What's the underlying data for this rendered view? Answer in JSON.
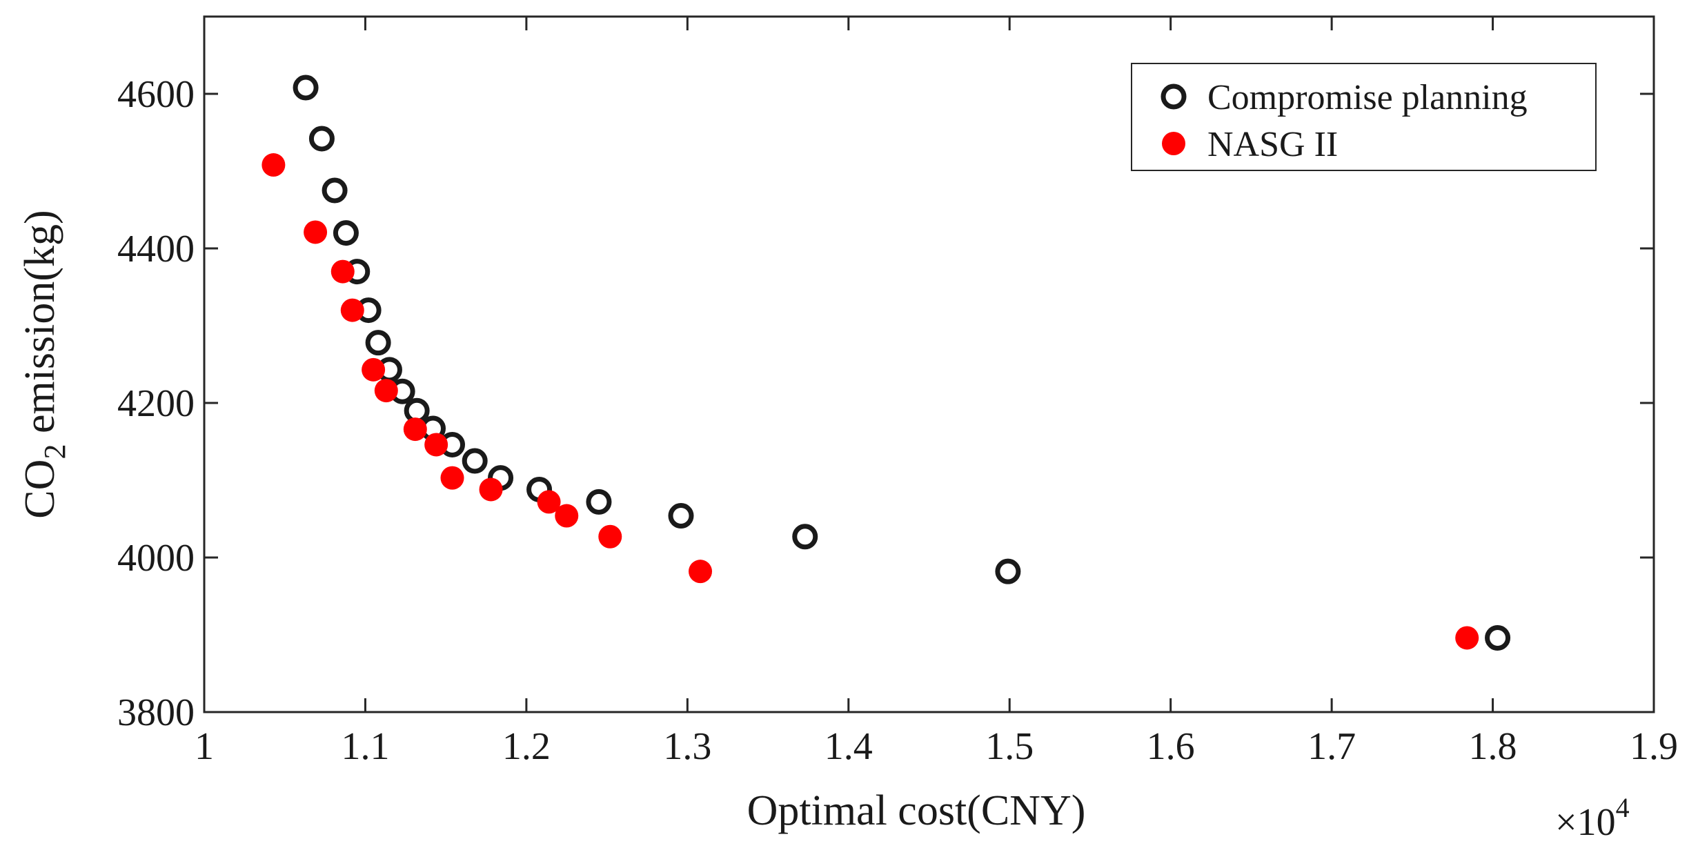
{
  "chart_data": {
    "type": "scatter",
    "title": "",
    "xlabel": "Optimal cost(CNY)",
    "ylabel": {
      "prefix": "CO",
      "subscript": "2",
      "suffix": " emission(kg)"
    },
    "x_multiplier": {
      "base": "×10",
      "exponent": "4"
    },
    "xlim": [
      1.0,
      1.9
    ],
    "ylim": [
      3800,
      4700
    ],
    "x_ticks": [
      1,
      1.1,
      1.2,
      1.3,
      1.4,
      1.5,
      1.6,
      1.7,
      1.8,
      1.9
    ],
    "x_tick_labels": [
      "1",
      "1.1",
      "1.2",
      "1.3",
      "1.4",
      "1.5",
      "1.6",
      "1.7",
      "1.8",
      "1.9"
    ],
    "y_ticks": [
      3800,
      4000,
      4200,
      4400,
      4600
    ],
    "y_tick_labels": [
      "3800",
      "4000",
      "4200",
      "4400",
      "4600"
    ],
    "grid": false,
    "legend_position": "top-right",
    "series": [
      {
        "name": "Compromise planning",
        "marker": "open-circle",
        "color": "#1a1a1a",
        "points": [
          [
            1.063,
            4608
          ],
          [
            1.073,
            4542
          ],
          [
            1.081,
            4475
          ],
          [
            1.088,
            4420
          ],
          [
            1.095,
            4370
          ],
          [
            1.102,
            4320
          ],
          [
            1.108,
            4278
          ],
          [
            1.115,
            4243
          ],
          [
            1.123,
            4215
          ],
          [
            1.132,
            4190
          ],
          [
            1.142,
            4167
          ],
          [
            1.154,
            4146
          ],
          [
            1.168,
            4125
          ],
          [
            1.184,
            4103
          ],
          [
            1.208,
            4088
          ],
          [
            1.245,
            4072
          ],
          [
            1.296,
            4054
          ],
          [
            1.373,
            4027
          ],
          [
            1.499,
            3982
          ],
          [
            1.803,
            3896
          ]
        ]
      },
      {
        "name": "NASG II",
        "marker": "filled-circle",
        "color": "#ff0000",
        "points": [
          [
            1.043,
            4508
          ],
          [
            1.069,
            4421
          ],
          [
            1.086,
            4370
          ],
          [
            1.092,
            4320
          ],
          [
            1.105,
            4243
          ],
          [
            1.113,
            4216
          ],
          [
            1.131,
            4166
          ],
          [
            1.144,
            4146
          ],
          [
            1.154,
            4103
          ],
          [
            1.178,
            4088
          ],
          [
            1.214,
            4072
          ],
          [
            1.225,
            4054
          ],
          [
            1.252,
            4027
          ],
          [
            1.308,
            3982
          ],
          [
            1.784,
            3896
          ]
        ]
      }
    ]
  }
}
